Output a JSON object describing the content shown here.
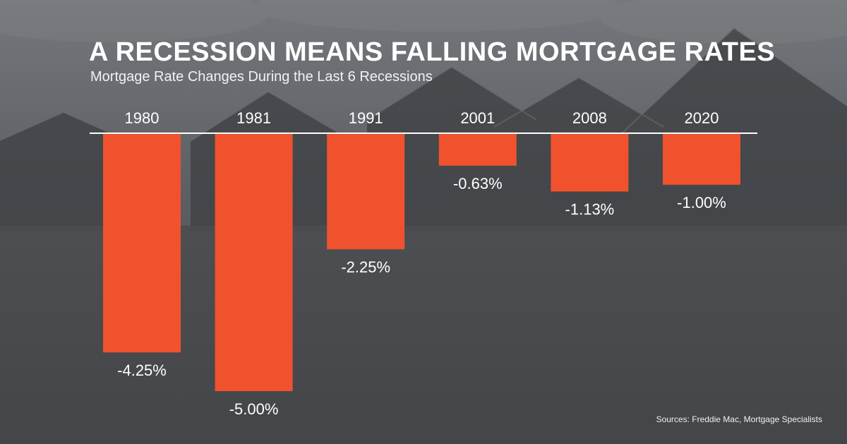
{
  "header": {
    "title": "A RECESSION MEANS FALLING MORTGAGE RATES",
    "subtitle": "Mortgage Rate Changes During the Last 6 Recessions"
  },
  "footer": {
    "source": "Sources: Freddie Mac, Mortgage Specialists"
  },
  "colors": {
    "bar": "#f0522d",
    "text": "#ffffff",
    "background": "#4a4c50"
  },
  "chart_data": {
    "type": "bar",
    "title": "A RECESSION MEANS FALLING MORTGAGE RATES",
    "subtitle": "Mortgage Rate Changes During the Last 6 Recessions",
    "categories": [
      "1980",
      "1981",
      "1991",
      "2001",
      "2008",
      "2020"
    ],
    "values": [
      -4.25,
      -5.0,
      -2.25,
      -0.63,
      -1.13,
      -1.0
    ],
    "data_labels": [
      "-4.25%",
      "-5.00%",
      "-2.25%",
      "-0.63%",
      "-1.13%",
      "-1.00%"
    ],
    "xlabel": "",
    "ylabel": "",
    "ylim": [
      -5.0,
      0
    ],
    "grid": false,
    "legend": "none",
    "category_label_position": "top"
  }
}
